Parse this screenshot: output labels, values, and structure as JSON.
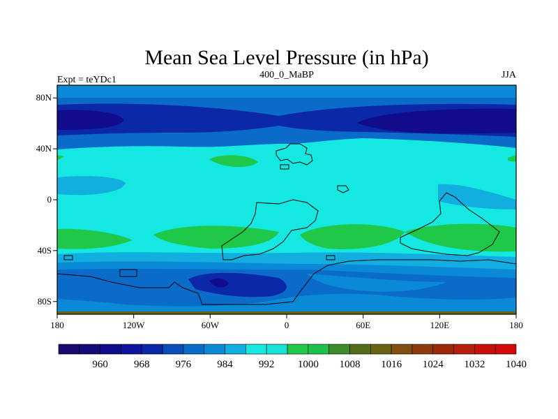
{
  "chart_data": {
    "type": "heatmap",
    "title": "Mean Sea Level Pressure (in hPa)",
    "subtitle_left": "Expt = teYDc1",
    "subtitle_center": "400_0_MaBP",
    "subtitle_right": "JJA",
    "x_range": [
      -180,
      180
    ],
    "y_range": [
      -90,
      90
    ],
    "x_ticks": [
      {
        "value": -180,
        "label": "180"
      },
      {
        "value": -120,
        "label": "120W"
      },
      {
        "value": -60,
        "label": "60W"
      },
      {
        "value": 0,
        "label": "0"
      },
      {
        "value": 60,
        "label": "60E"
      },
      {
        "value": 120,
        "label": "120E"
      },
      {
        "value": 180,
        "label": "180"
      }
    ],
    "y_ticks": [
      {
        "value": 80,
        "label": "80N"
      },
      {
        "value": 40,
        "label": "40N"
      },
      {
        "value": 0,
        "label": "0"
      },
      {
        "value": -40,
        "label": "40S"
      },
      {
        "value": -80,
        "label": "80S"
      }
    ],
    "colorbar": {
      "colors": [
        "#1a0a6e",
        "#150b7c",
        "#100c8c",
        "#0e149c",
        "#0b28a8",
        "#0a4db8",
        "#0a6cc8",
        "#0a8ad6",
        "#12aee0",
        "#14e8e0",
        "#16e4d4",
        "#20c84a",
        "#1cc04a",
        "#3c8c2c",
        "#546e18",
        "#6a6412",
        "#82500e",
        "#8e3c0c",
        "#9c2a0a",
        "#b4200a",
        "#c81008",
        "#d40808"
      ],
      "labels": [
        "960",
        "968",
        "976",
        "984",
        "992",
        "1000",
        "1008",
        "1016",
        "1024",
        "1032",
        "1040"
      ]
    }
  }
}
